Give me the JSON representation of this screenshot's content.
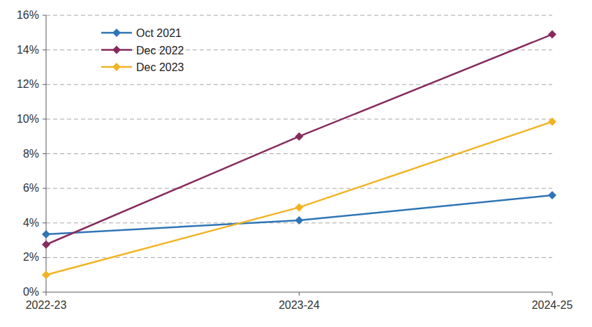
{
  "chart_data": {
    "type": "line",
    "categories": [
      "2022-23",
      "2023-24",
      "2024-25"
    ],
    "series": [
      {
        "name": "Oct 2021",
        "color": "#2f75b5",
        "marker": "diamond",
        "values": [
          3.35,
          4.15,
          5.6
        ]
      },
      {
        "name": "Dec 2022",
        "color": "#862b5e",
        "marker": "diamond",
        "values": [
          2.75,
          9.0,
          14.9
        ]
      },
      {
        "name": "Dec 2023",
        "color": "#f2b322",
        "marker": "diamond",
        "values": [
          1.0,
          4.9,
          9.85
        ]
      }
    ],
    "ylim": [
      0,
      16
    ],
    "yticks": [
      {
        "value": 0,
        "label": "0%"
      },
      {
        "value": 2,
        "label": "2%"
      },
      {
        "value": 4,
        "label": "4%"
      },
      {
        "value": 6,
        "label": "6%"
      },
      {
        "value": 8,
        "label": "8%"
      },
      {
        "value": 10,
        "label": "10%"
      },
      {
        "value": 12,
        "label": "12%"
      },
      {
        "value": 14,
        "label": "14%"
      },
      {
        "value": 16,
        "label": "16%"
      }
    ],
    "grid": true,
    "legend": "top-left"
  }
}
